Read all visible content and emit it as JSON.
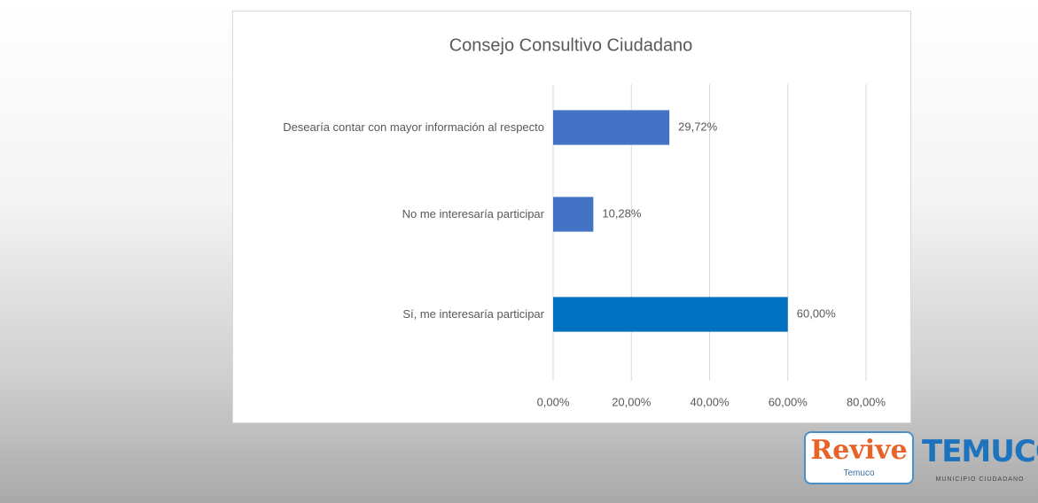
{
  "chart_data": {
    "type": "hbar",
    "title": "Consejo Consultivo Ciudadano",
    "categories": [
      "Desearía contar con mayor información al respecto",
      "No me interesaría participar",
      "Sí, me interesaría participar"
    ],
    "values": [
      29.72,
      10.28,
      60.0
    ],
    "value_labels": [
      "29,72%",
      "10,28%",
      "60,00%"
    ],
    "colors": [
      "#4472c4",
      "#4472c4",
      "#0070c0"
    ],
    "xlim": [
      0,
      80
    ],
    "xticks": [
      {
        "value": 0,
        "label": "0,00%"
      },
      {
        "value": 20,
        "label": "20,00%"
      },
      {
        "value": 40,
        "label": "40,00%"
      },
      {
        "value": 60,
        "label": "60,00%"
      },
      {
        "value": 80,
        "label": "80,00%"
      }
    ],
    "grid": true
  },
  "logos": [
    {
      "text": "Revive",
      "subtitle": "Temuco"
    },
    {
      "text": "TEMUCO",
      "subtitle": "MUNICIPIO CIUDADANO"
    }
  ]
}
